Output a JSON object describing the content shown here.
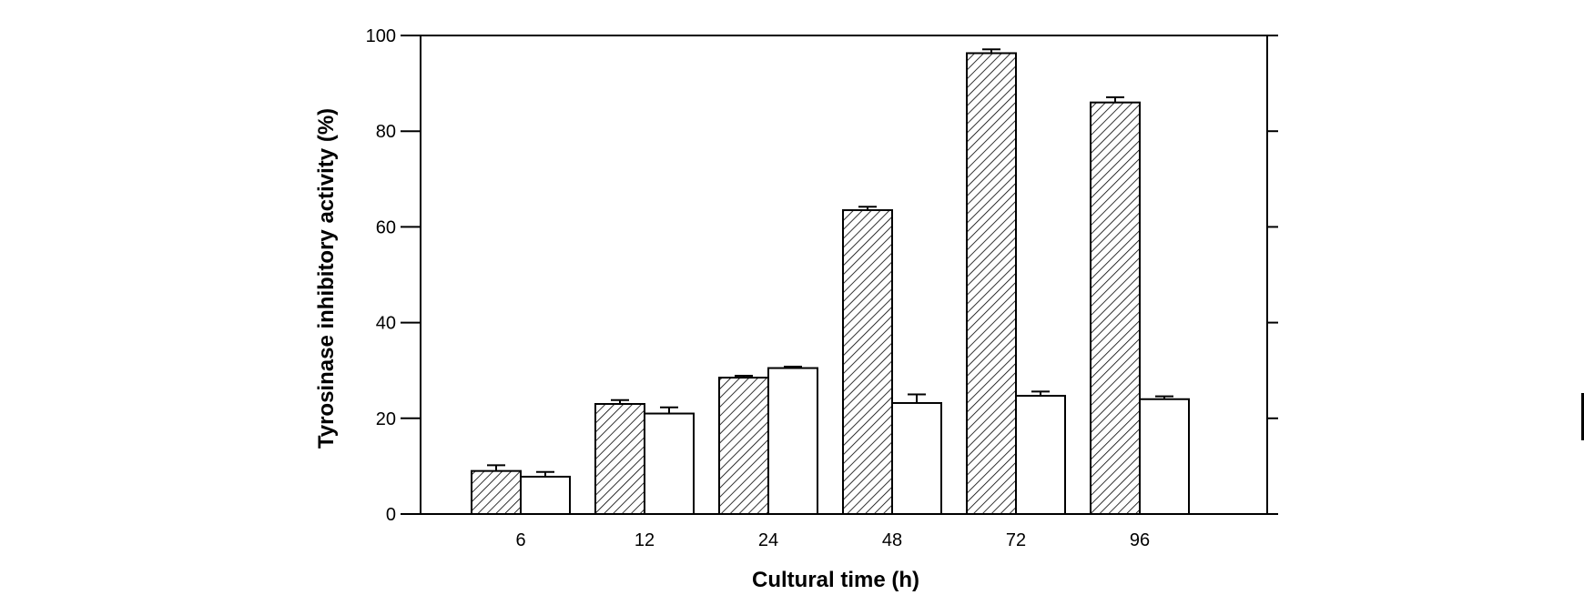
{
  "chart_data": {
    "type": "bar",
    "title": "",
    "xlabel": "Cultural time (h)",
    "ylabel": "Tyrosinase inhibitory activity (%)",
    "categories": [
      "6",
      "12",
      "24",
      "48",
      "72",
      "96"
    ],
    "ylim": [
      0,
      100
    ],
    "yticks": [
      0,
      20,
      40,
      60,
      80,
      100
    ],
    "grid": false,
    "legend": "none",
    "series": [
      {
        "values": [
          9,
          23,
          28.5,
          63.5,
          96.3,
          86
        ],
        "errors": [
          1.2,
          0.8,
          0.4,
          0.7,
          0.8,
          1.1
        ],
        "fill": "hatched",
        "color": "#000000"
      },
      {
        "values": [
          7.8,
          21,
          30.5,
          23.2,
          24.7,
          24
        ],
        "errors": [
          1.0,
          1.3,
          0.3,
          1.8,
          0.9,
          0.6
        ],
        "fill": "white",
        "color": "#000000"
      }
    ]
  }
}
